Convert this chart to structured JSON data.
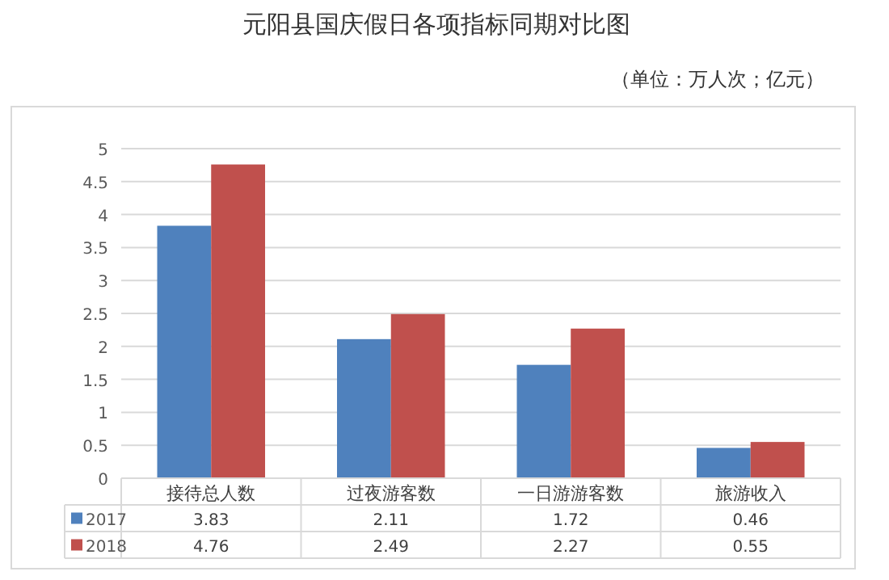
{
  "chart_data": {
    "type": "bar",
    "title": "元阳县国庆假日各项指标同期对比图",
    "subtitle": "（单位：万人次；亿元）",
    "categories": [
      "接待总人数",
      "过夜游客数",
      "一日游游客数",
      "旅游收入"
    ],
    "series": [
      {
        "name": "2017",
        "color": "#4f81bd",
        "values": [
          3.83,
          2.11,
          1.72,
          0.46
        ]
      },
      {
        "name": "2018",
        "color": "#c0504d",
        "values": [
          4.76,
          2.49,
          2.27,
          0.55
        ]
      }
    ],
    "ylim": [
      0,
      5
    ],
    "yticks": [
      0,
      0.5,
      1,
      1.5,
      2,
      2.5,
      3,
      3.5,
      4,
      4.5,
      5
    ],
    "grid": "y",
    "legend": "bottom",
    "data_labels": true
  }
}
